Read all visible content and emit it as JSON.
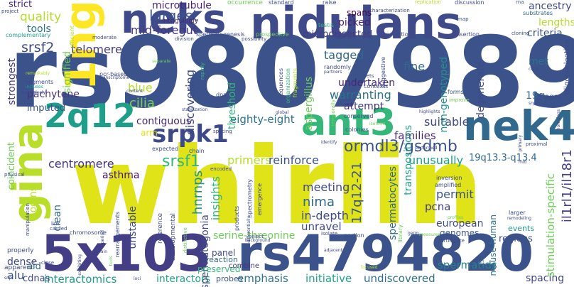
{
  "words": [
    {
      "text": "rs9807989",
      "color": "#3b528b"
    },
    {
      "text": "whirlin",
      "color": "#dfe318"
    },
    {
      "text": "nidulans",
      "color": "#3e4a89"
    },
    {
      "text": "rs4794820",
      "color": "#3b528b"
    },
    {
      "text": "5x103",
      "color": "#433e85"
    },
    {
      "text": "ant3",
      "color": "#35b779"
    },
    {
      "text": "neks",
      "color": "#3e4a89"
    },
    {
      "text": "1ng",
      "color": "#fde725"
    },
    {
      "text": "nek4",
      "color": "#31688e"
    },
    {
      "text": "gina",
      "color": "#b8de29"
    },
    {
      "text": "2q12",
      "color": "#1f9e89"
    },
    {
      "text": "srpk1",
      "color": "#3e4989"
    },
    {
      "text": "ormdl3/gsdmb",
      "color": "#3b528b"
    },
    {
      "text": "largest",
      "color": "#3b528b"
    },
    {
      "text": "mid-foregut",
      "color": "#443983"
    },
    {
      "text": "microtubule",
      "color": "#482677"
    },
    {
      "text": "srsf2",
      "color": "#3e4a89"
    },
    {
      "text": "telomere",
      "color": "#433e85"
    },
    {
      "text": "tagged",
      "color": "#31688e"
    },
    {
      "text": "cilia",
      "color": "#7ad151"
    },
    {
      "text": "eighty-eight",
      "color": "#2c728e"
    },
    {
      "text": "centromere",
      "color": "#46337e"
    },
    {
      "text": "srsf1",
      "color": "#35b779"
    },
    {
      "text": "hnrnps",
      "color": "#21918c"
    },
    {
      "text": "primers",
      "color": "#b5de2b"
    },
    {
      "text": "reinforce",
      "color": "#3b528b"
    },
    {
      "text": "insights",
      "color": "#35b779"
    },
    {
      "text": "nima",
      "color": "#31688e"
    },
    {
      "text": "meeting",
      "color": "#3e4a89"
    },
    {
      "text": "17q12-21",
      "color": "#3b528b"
    },
    {
      "text": "in-depth",
      "color": "#3e4a89"
    },
    {
      "text": "unravel",
      "color": "#404688"
    },
    {
      "text": "serine-threonine",
      "color": "#6ece58"
    },
    {
      "text": "emphasis",
      "color": "#2c728e"
    },
    {
      "text": "initiative",
      "color": "#20a386"
    },
    {
      "text": "undiscovered",
      "color": "#2c728e"
    },
    {
      "text": "spermatids",
      "color": "#26828e"
    },
    {
      "text": "spacing",
      "color": "#404688"
    },
    {
      "text": "interactomics",
      "color": "#1f9e89"
    },
    {
      "text": "interactors",
      "color": "#22a884"
    },
    {
      "text": "il1rl1/il18r1",
      "color": "#433e85"
    },
    {
      "text": "stimulation-specific",
      "color": "#6ece58"
    },
    {
      "text": "19q13.3-q13.4",
      "color": "#31688e"
    },
    {
      "text": "unusually",
      "color": "#1fa187"
    },
    {
      "text": "suitable",
      "color": "#3e4a89"
    },
    {
      "text": "families",
      "color": "#482878"
    },
    {
      "text": "permit",
      "color": "#3b528b"
    },
    {
      "text": "pcna",
      "color": "#433e85"
    },
    {
      "text": "fine",
      "color": "#31688e"
    },
    {
      "text": "warranting",
      "color": "#2c728e"
    },
    {
      "text": "undertaken",
      "color": "#482878"
    },
    {
      "text": "attempt",
      "color": "#46327e"
    },
    {
      "text": "microdissected",
      "color": "#433e85"
    },
    {
      "text": "picked",
      "color": "#481f70"
    },
    {
      "text": "spans",
      "color": "#440154"
    },
    {
      "text": "lengths",
      "color": "#b5de2b"
    },
    {
      "text": "criteria",
      "color": "#3b528b"
    },
    {
      "text": "ancestry",
      "color": "#3e4a89"
    },
    {
      "text": "met",
      "color": "#2c728e"
    },
    {
      "text": "19q",
      "color": "#31688e"
    },
    {
      "text": "quality",
      "color": "#b5de2b"
    },
    {
      "text": "tools",
      "color": "#2c728e"
    },
    {
      "text": "strict",
      "color": "#482878"
    },
    {
      "text": "pachytene",
      "color": "#46337e"
    },
    {
      "text": "imputed",
      "color": "#3b528b"
    },
    {
      "text": "strongest",
      "color": "#443983"
    },
    {
      "text": "signified",
      "color": "#6ece58"
    },
    {
      "text": "discovering",
      "color": "#3e4a89"
    },
    {
      "text": "blue",
      "color": "#b5de2b"
    },
    {
      "text": "contiguous",
      "color": "#482878"
    },
    {
      "text": "asthma",
      "color": "#471063"
    },
    {
      "text": "clean",
      "color": "#31688e"
    },
    {
      "text": "logins",
      "color": "#b8de29"
    },
    {
      "text": "coincident",
      "color": "#6ece58"
    },
    {
      "text": "dense",
      "color": "#3e4a89"
    },
    {
      "text": "alu",
      "color": "#3b528b"
    },
    {
      "text": "aid",
      "color": "#31688e"
    },
    {
      "text": "cdnas",
      "color": "#3e4a89"
    },
    {
      "text": "unstable",
      "color": "#3e4a89"
    },
    {
      "text": "spermatogonia",
      "color": "#3e4a89"
    },
    {
      "text": "threshold",
      "color": "#35b779"
    },
    {
      "text": "aspergillus",
      "color": "#6ece58"
    },
    {
      "text": "spermatocytes",
      "color": "#31688e"
    },
    {
      "text": "transpositions",
      "color": "#1f9e89"
    },
    {
      "text": "non-genotyped",
      "color": "#21918c"
    },
    {
      "text": "degenerate",
      "color": "#3e4a89"
    },
    {
      "text": "mouse-human",
      "color": "#2c728e"
    },
    {
      "text": "regions",
      "color": "#3b528b"
    },
    {
      "text": "european",
      "color": "#3e4a89"
    },
    {
      "text": "genomes",
      "color": "#3b528b"
    },
    {
      "text": "events",
      "color": "#1f9e89"
    },
    {
      "text": "arm",
      "color": "#dfe318"
    },
    {
      "text": "preserved",
      "color": "#35b779"
    },
    {
      "text": "panel",
      "color": "#3e4a89"
    },
    {
      "text": "reaction",
      "color": "#31688e"
    },
    {
      "text": "probes",
      "color": "#3b528b"
    },
    {
      "text": "combine",
      "color": "#443983"
    },
    {
      "text": "intriguingly",
      "color": "#482878"
    },
    {
      "text": "occurrence",
      "color": "#6ece58"
    },
    {
      "text": "standard",
      "color": "#3b528b"
    },
    {
      "text": "raise",
      "color": "#3e4a89"
    },
    {
      "text": "characterization",
      "color": "#3e4a89"
    },
    {
      "text": "replication",
      "color": "#b5de2b"
    },
    {
      "text": "discussion",
      "color": "#3e4a89"
    },
    {
      "text": "rna",
      "color": "#3b528b"
    },
    {
      "text": "substrates",
      "color": "#31688e"
    },
    {
      "text": "map",
      "color": "#3b528b"
    },
    {
      "text": "cloning",
      "color": "#3b528b"
    },
    {
      "text": "insertion",
      "color": "#3e4a89"
    },
    {
      "text": "resolution",
      "color": "#3e4a89"
    },
    {
      "text": "prospective",
      "color": "#6ece58"
    },
    {
      "text": "spermatogenesis",
      "color": "#3e4a89"
    },
    {
      "text": "testis",
      "color": "#35b779"
    },
    {
      "text": "efficient",
      "color": "#b5de2b"
    },
    {
      "text": "moderate",
      "color": "#3e4a89"
    },
    {
      "text": "division",
      "color": "#3e4a89"
    },
    {
      "text": "possibility",
      "color": "#3e4a89"
    },
    {
      "text": "project",
      "color": "#3b528b"
    },
    {
      "text": "complementary",
      "color": "#1f9e89"
    },
    {
      "text": "pcr-based",
      "color": "#3e4a89"
    },
    {
      "text": "transcriptome",
      "color": "#3e4a89"
    },
    {
      "text": "remarkably",
      "color": "#b5de2b"
    },
    {
      "text": "segments",
      "color": "#3e4a89"
    },
    {
      "text": "includes",
      "color": "#1f9e89"
    },
    {
      "text": "separate",
      "color": "#6ece58"
    },
    {
      "text": "rapidly",
      "color": "#35b779"
    },
    {
      "text": "sequences",
      "color": "#3e4a89"
    },
    {
      "text": "organization",
      "color": "#35b779"
    },
    {
      "text": "fragments",
      "color": "#b5de2b"
    },
    {
      "text": "randomly",
      "color": "#3e4a89"
    },
    {
      "text": "partners",
      "color": "#3e4a89"
    },
    {
      "text": "suggestive",
      "color": "#3e4a89"
    },
    {
      "text": "sets",
      "color": "#3e4a89"
    },
    {
      "text": "contexts",
      "color": "#3e4a89"
    },
    {
      "text": "temporally",
      "color": "#6ece58"
    },
    {
      "text": "conserved",
      "color": "#3b528b"
    },
    {
      "text": "forms",
      "color": "#3b528b"
    },
    {
      "text": "improve",
      "color": "#6ece58"
    },
    {
      "text": "oligonucleotide",
      "color": "#3e4a89"
    },
    {
      "text": "stages",
      "color": "#3e4a89"
    },
    {
      "text": "snps",
      "color": "#3e4a89"
    },
    {
      "text": "homologs",
      "color": "#3e4a89"
    },
    {
      "text": "proximal",
      "color": "#3b528b"
    },
    {
      "text": "extensively",
      "color": "#3e4a89"
    },
    {
      "text": "content",
      "color": "#3e4a89"
    },
    {
      "text": "stabilization",
      "color": "#3e4a89"
    },
    {
      "text": "global",
      "color": "#3e4a89"
    },
    {
      "text": "splicing",
      "color": "#3e4a89"
    },
    {
      "text": "dna",
      "color": "#3e4a89"
    },
    {
      "text": "colonies",
      "color": "#3b528b"
    },
    {
      "text": "isoform",
      "color": "#6ece58"
    },
    {
      "text": "highlights",
      "color": "#3e4a89"
    },
    {
      "text": "identify",
      "color": "#3e4a89"
    },
    {
      "text": "performed",
      "color": "#3e4a89"
    },
    {
      "text": "expected",
      "color": "#3e4a89"
    },
    {
      "text": "chain",
      "color": "#3e4a89"
    },
    {
      "text": "encoded",
      "color": "#3e4a89"
    },
    {
      "text": "physical",
      "color": "#3e4a89"
    },
    {
      "text": "manipulation",
      "color": "#3e4a89"
    },
    {
      "text": "properly",
      "color": "#3e4a89"
    },
    {
      "text": "link",
      "color": "#3e4a89"
    },
    {
      "text": "carried",
      "color": "#3e4a89"
    },
    {
      "text": "chromosome",
      "color": "#3e4a89"
    },
    {
      "text": "apparent",
      "color": "#3e4a89"
    },
    {
      "text": "close",
      "color": "#3e4a89"
    },
    {
      "text": "rearrangements",
      "color": "#3e4a89"
    },
    {
      "text": "period",
      "color": "#3e4a89"
    },
    {
      "text": "distinctive",
      "color": "#6ece58"
    },
    {
      "text": "developmental",
      "color": "#3e4a89"
    },
    {
      "text": "reference",
      "color": "#3e4a89"
    },
    {
      "text": "spectrometry",
      "color": "#3e4a89"
    },
    {
      "text": "emergence",
      "color": "#3e4a89"
    },
    {
      "text": "products",
      "color": "#3e4a89"
    },
    {
      "text": "differentially",
      "color": "#3e4a89"
    },
    {
      "text": "select",
      "color": "#3e4a89"
    },
    {
      "text": "background",
      "color": "#3e4a89"
    },
    {
      "text": "isolate",
      "color": "#3e4a89"
    },
    {
      "text": "portion",
      "color": "#3e4a89"
    },
    {
      "text": "library",
      "color": "#6ece58"
    },
    {
      "text": "germ",
      "color": "#3e4a89"
    },
    {
      "text": "measures",
      "color": "#6ece58"
    },
    {
      "text": "profiles",
      "color": "#6ece58"
    },
    {
      "text": "participate",
      "color": "#3e4a89"
    },
    {
      "text": "amplified",
      "color": "#3e4a89"
    },
    {
      "text": "inversion",
      "color": "#3e4a89"
    },
    {
      "text": "larger",
      "color": "#3e4a89"
    },
    {
      "text": "remodeling",
      "color": "#3e4a89"
    },
    {
      "text": "mid",
      "color": "#3e4a89"
    },
    {
      "text": "primary",
      "color": "#3e4a89"
    },
    {
      "text": "snp",
      "color": "#3e4a89"
    },
    {
      "text": "exhibiting",
      "color": "#3e4a89"
    },
    {
      "text": "main",
      "color": "#3e4a89"
    },
    {
      "text": "buds",
      "color": "#6ece58"
    },
    {
      "text": "loci",
      "color": "#3e4a89"
    },
    {
      "text": "adjacent",
      "color": "#3e4a89"
    },
    {
      "text": "focused",
      "color": "#b5de2b"
    },
    {
      "text": "cdna",
      "color": "#3e4a89"
    }
  ]
}
